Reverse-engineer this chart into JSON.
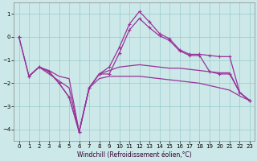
{
  "xlabel": "Windchill (Refroidissement éolien,°C)",
  "background_color": "#cce8e8",
  "grid_color": "#99cccc",
  "line_color": "#993399",
  "xlim": [
    -0.5,
    23.5
  ],
  "ylim": [
    -4.5,
    1.5
  ],
  "yticks": [
    -4,
    -3,
    -2,
    -1,
    0,
    1
  ],
  "xticks": [
    0,
    1,
    2,
    3,
    4,
    5,
    6,
    7,
    8,
    9,
    10,
    11,
    12,
    13,
    14,
    15,
    16,
    17,
    18,
    19,
    20,
    21,
    22,
    23
  ],
  "curve1_x": [
    0,
    1,
    2,
    3,
    4,
    5,
    6,
    7,
    8,
    9,
    10,
    11,
    12,
    13,
    14,
    15,
    16,
    17,
    18,
    19,
    20,
    21,
    22,
    23
  ],
  "curve1_y": [
    0.0,
    -1.7,
    -1.3,
    -1.5,
    -2.0,
    -2.6,
    -4.1,
    -2.2,
    -1.6,
    -1.3,
    -0.45,
    0.55,
    1.1,
    0.65,
    0.15,
    -0.08,
    -0.55,
    -0.75,
    -0.75,
    -0.8,
    -0.85,
    -0.85,
    -2.4,
    -2.75
  ],
  "curve2_x": [
    1,
    2,
    3,
    4,
    5,
    6,
    7,
    8,
    9,
    10,
    11,
    12,
    13,
    14,
    15,
    16,
    17,
    18,
    19,
    20,
    21,
    22,
    23
  ],
  "curve2_y": [
    -1.7,
    -1.3,
    -1.45,
    -1.7,
    -1.8,
    -4.1,
    -2.2,
    -1.6,
    -1.45,
    -1.3,
    -1.25,
    -1.2,
    -1.25,
    -1.3,
    -1.35,
    -1.35,
    -1.4,
    -1.45,
    -1.5,
    -1.55,
    -1.55,
    -2.4,
    -2.75
  ],
  "curve3_x": [
    0,
    1,
    2,
    3,
    4,
    5,
    6,
    7,
    8,
    9,
    10,
    11,
    12,
    13,
    14,
    15,
    16,
    17,
    18,
    19,
    20,
    21,
    22,
    23
  ],
  "curve3_y": [
    0.0,
    -1.7,
    -1.3,
    -1.5,
    -2.0,
    -2.6,
    -4.1,
    -2.2,
    -1.6,
    -1.6,
    -0.7,
    0.3,
    0.8,
    0.4,
    0.05,
    -0.15,
    -0.6,
    -0.8,
    -0.8,
    -1.5,
    -1.6,
    -1.6,
    -2.4,
    -2.75
  ],
  "curve4_x": [
    1,
    2,
    3,
    4,
    5,
    6,
    7,
    8,
    9,
    10,
    11,
    12,
    13,
    14,
    15,
    16,
    17,
    18,
    19,
    20,
    21,
    22,
    23
  ],
  "curve4_y": [
    -1.7,
    -1.3,
    -1.6,
    -1.9,
    -2.2,
    -4.1,
    -2.2,
    -1.8,
    -1.7,
    -1.7,
    -1.7,
    -1.7,
    -1.75,
    -1.8,
    -1.85,
    -1.9,
    -1.95,
    -2.0,
    -2.1,
    -2.2,
    -2.3,
    -2.55,
    -2.75
  ]
}
